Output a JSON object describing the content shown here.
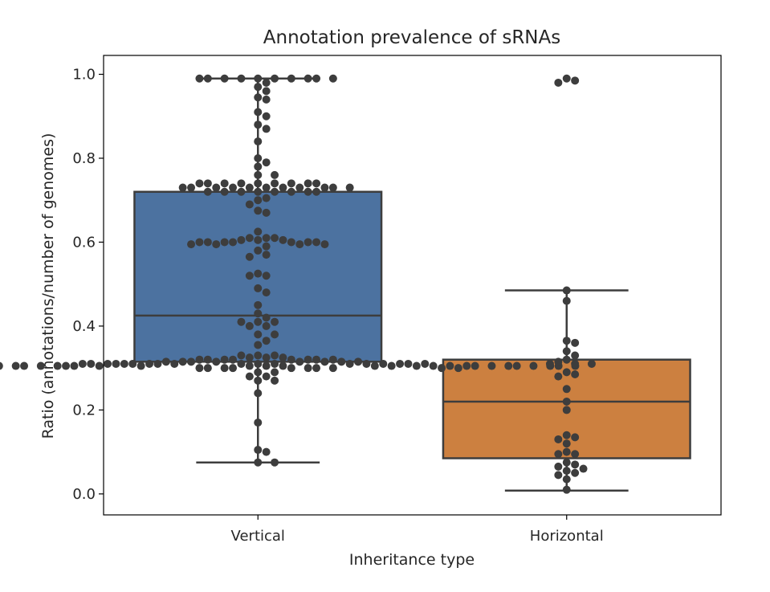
{
  "chart_data": {
    "type": "boxplot",
    "title": "Annotation prevalence of sRNAs",
    "xlabel": "Inheritance type",
    "ylabel": "Ratio (annotations/number of genomes)",
    "ylim": [
      -0.05,
      1.045
    ],
    "yticks": [
      "0.0",
      "0.2",
      "0.4",
      "0.6",
      "0.8",
      "1.0"
    ],
    "categories": [
      "Vertical",
      "Horizontal"
    ],
    "grid": false,
    "legend": "none",
    "colors": {
      "Vertical": "#4c72a0",
      "Horizontal": "#cc8040",
      "points": "#3d3d3d",
      "lines": "#3d3d3d"
    },
    "boxes": [
      {
        "category": "Vertical",
        "q1": 0.315,
        "median": 0.425,
        "q3": 0.72,
        "whisker_low": 0.075,
        "whisker_high": 0.99
      },
      {
        "category": "Horizontal",
        "q1": 0.085,
        "median": 0.22,
        "q3": 0.32,
        "whisker_low": 0.008,
        "whisker_high": 0.485
      }
    ],
    "points": {
      "Vertical": [
        0.99,
        0.99,
        0.99,
        0.99,
        0.99,
        0.99,
        0.99,
        0.99,
        0.99,
        0.99,
        0.98,
        0.97,
        0.96,
        0.945,
        0.94,
        0.91,
        0.9,
        0.88,
        0.87,
        0.84,
        0.8,
        0.79,
        0.78,
        0.76,
        0.76,
        0.74,
        0.74,
        0.74,
        0.74,
        0.74,
        0.74,
        0.74,
        0.74,
        0.74,
        0.73,
        0.73,
        0.73,
        0.73,
        0.73,
        0.73,
        0.73,
        0.73,
        0.73,
        0.73,
        0.73,
        0.72,
        0.72,
        0.72,
        0.72,
        0.72,
        0.72,
        0.72,
        0.72,
        0.705,
        0.7,
        0.69,
        0.675,
        0.67,
        0.625,
        0.61,
        0.61,
        0.61,
        0.605,
        0.605,
        0.605,
        0.6,
        0.6,
        0.6,
        0.6,
        0.6,
        0.6,
        0.6,
        0.595,
        0.595,
        0.595,
        0.595,
        0.59,
        0.58,
        0.57,
        0.565,
        0.525,
        0.52,
        0.52,
        0.49,
        0.48,
        0.45,
        0.43,
        0.42,
        0.41,
        0.41,
        0.41,
        0.4,
        0.4,
        0.38,
        0.38,
        0.365,
        0.355,
        0.33,
        0.33,
        0.33,
        0.325,
        0.325,
        0.325,
        0.32,
        0.32,
        0.32,
        0.32,
        0.32,
        0.32,
        0.32,
        0.32,
        0.315,
        0.315,
        0.315,
        0.315,
        0.315,
        0.315,
        0.315,
        0.315,
        0.31,
        0.31,
        0.31,
        0.31,
        0.31,
        0.31,
        0.31,
        0.31,
        0.31,
        0.31,
        0.31,
        0.31,
        0.31,
        0.31,
        0.31,
        0.31,
        0.31,
        0.31,
        0.305,
        0.305,
        0.305,
        0.305,
        0.305,
        0.305,
        0.305,
        0.305,
        0.305,
        0.305,
        0.305,
        0.305,
        0.305,
        0.305,
        0.305,
        0.305,
        0.305,
        0.305,
        0.305,
        0.305,
        0.305,
        0.305,
        0.305,
        0.305,
        0.305,
        0.305,
        0.305,
        0.305,
        0.305,
        0.305,
        0.305,
        0.3,
        0.3,
        0.3,
        0.3,
        0.3,
        0.3,
        0.3,
        0.3,
        0.3,
        0.3,
        0.29,
        0.29,
        0.28,
        0.28,
        0.27,
        0.27,
        0.24,
        0.17,
        0.105,
        0.1,
        0.075,
        0.075
      ],
      "Horizontal": [
        0.99,
        0.985,
        0.98,
        0.485,
        0.46,
        0.365,
        0.36,
        0.34,
        0.33,
        0.32,
        0.315,
        0.31,
        0.31,
        0.31,
        0.29,
        0.285,
        0.28,
        0.25,
        0.22,
        0.2,
        0.14,
        0.135,
        0.13,
        0.12,
        0.1,
        0.095,
        0.095,
        0.075,
        0.07,
        0.065,
        0.06,
        0.055,
        0.05,
        0.045,
        0.035,
        0.01
      ]
    }
  }
}
